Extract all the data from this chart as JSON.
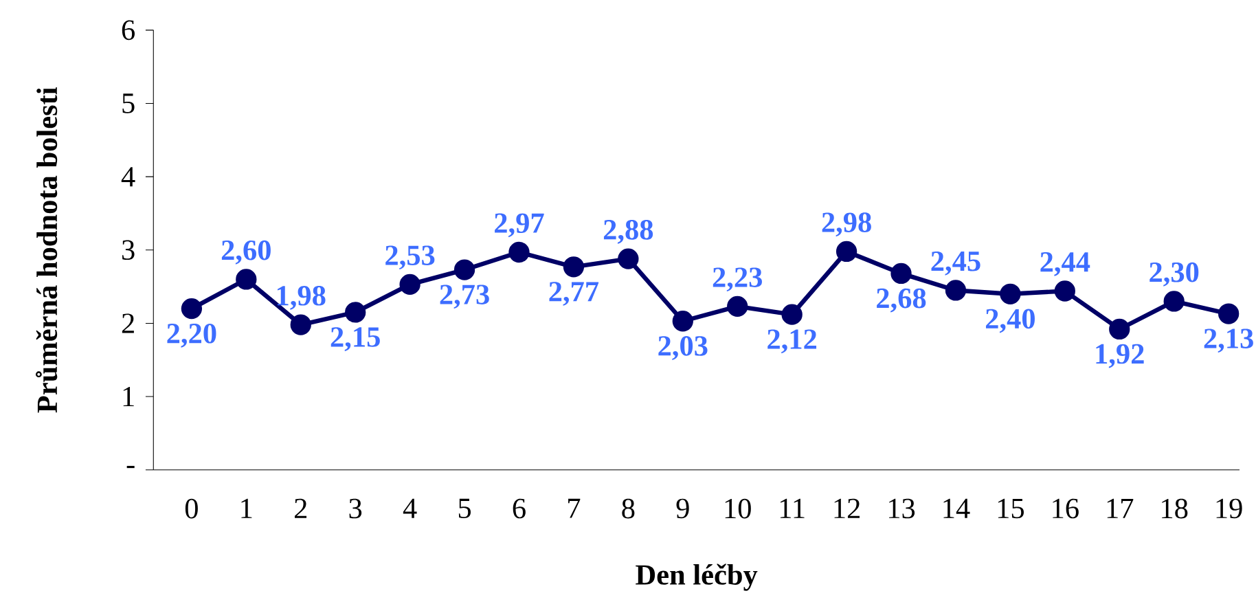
{
  "chart_data": {
    "type": "line",
    "xlabel": "Den léčby",
    "ylabel": "Průměrná hodnota bolesti",
    "categories": [
      "0",
      "1",
      "2",
      "3",
      "4",
      "5",
      "6",
      "7",
      "8",
      "9",
      "10",
      "11",
      "12",
      "13",
      "14",
      "15",
      "16",
      "17",
      "18",
      "19"
    ],
    "series": [
      {
        "color": "#000066",
        "values": [
          2.2,
          2.6,
          1.98,
          2.15,
          2.53,
          2.73,
          2.97,
          2.77,
          2.88,
          2.03,
          2.23,
          2.12,
          2.98,
          2.68,
          2.45,
          2.4,
          2.44,
          1.92,
          2.3,
          2.13
        ],
        "value_labels": [
          "2,20",
          "2,60",
          "1,98",
          "2,15",
          "2,53",
          "2,73",
          "2,97",
          "2,77",
          "2,88",
          "2,03",
          "2,23",
          "2,12",
          "2,98",
          "2,68",
          "2,45",
          "2,40",
          "2,44",
          "1,92",
          "2,30",
          "2,13"
        ]
      }
    ],
    "ylim": [
      0,
      6
    ],
    "yticks": [
      {
        "value": 0,
        "label": "-"
      },
      1,
      2,
      3,
      4,
      5,
      6
    ],
    "marker": "circle",
    "line_style": "solid",
    "grid": false,
    "legend": false
  }
}
